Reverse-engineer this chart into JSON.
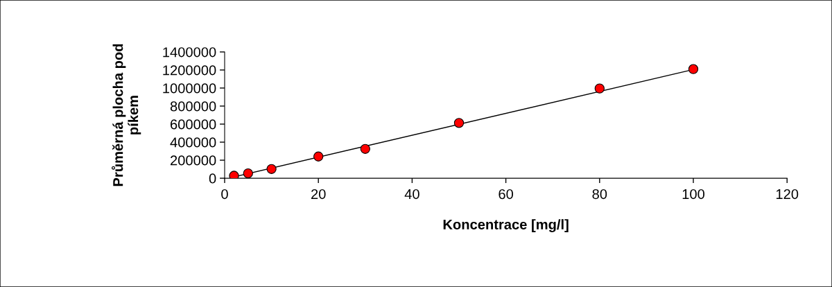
{
  "chart_data": {
    "type": "scatter",
    "xlabel": "Koncentrace [mg/l]",
    "ylabel": "Průměrná plocha pod\npíkem",
    "xlim": [
      0,
      120
    ],
    "xticks": [
      0,
      20,
      40,
      60,
      80,
      100,
      120
    ],
    "ylim": [
      0,
      1400000
    ],
    "yticks": [
      0,
      200000,
      400000,
      600000,
      800000,
      1000000,
      1200000,
      1400000
    ],
    "grid": false,
    "legend": false,
    "series": [
      {
        "type": "line",
        "color": "#000000",
        "x": [
          2,
          100
        ],
        "values": [
          15000,
          1205000
        ],
        "line_style": "solid"
      },
      {
        "marker": "circle",
        "color": "#ff0000",
        "x": [
          2,
          5,
          10,
          20,
          30,
          50,
          80,
          100
        ],
        "values": [
          28000,
          54000,
          102000,
          241000,
          325000,
          613000,
          995000,
          1210000
        ]
      }
    ]
  }
}
